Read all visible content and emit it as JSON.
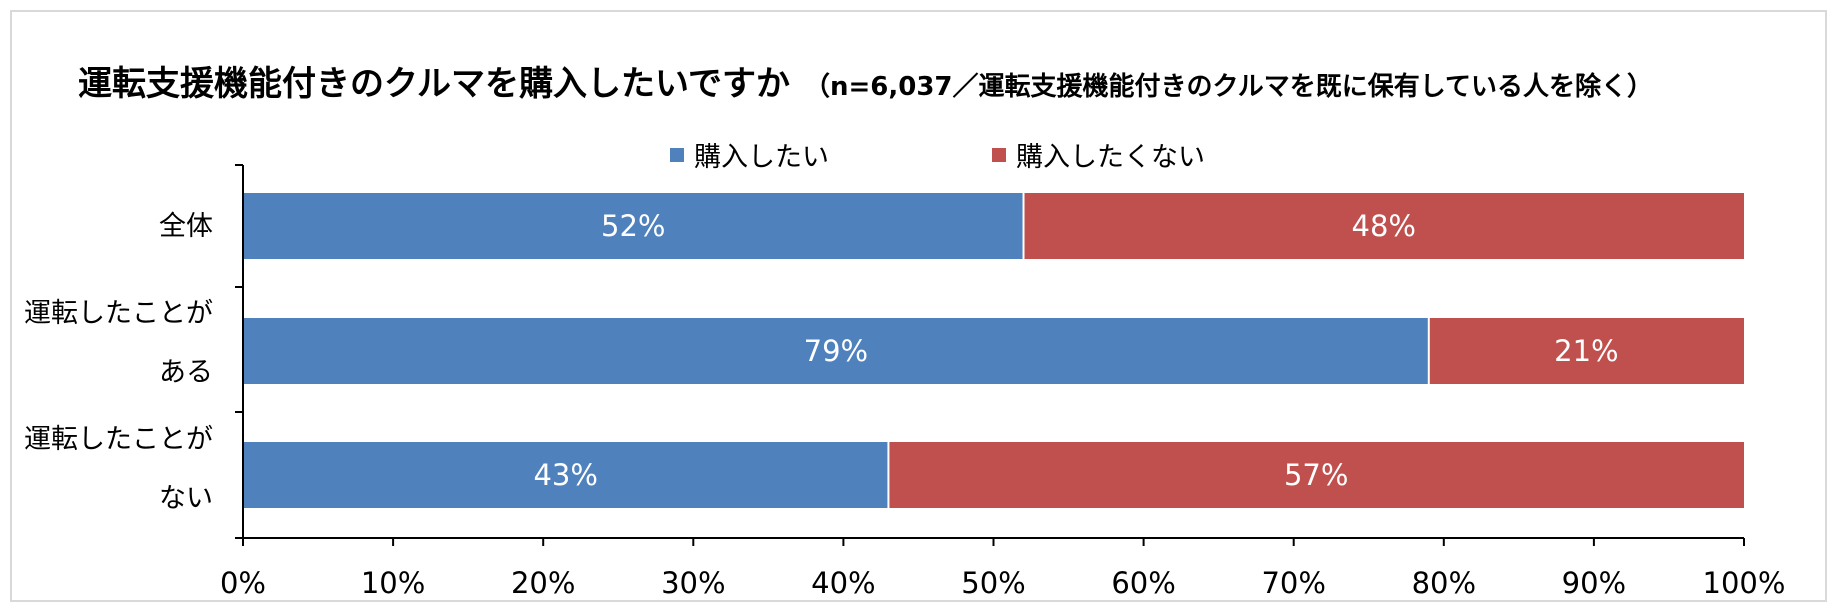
{
  "title": "運転支援機能付きのクルマを購入したいですか",
  "subtitle": "（n=6,037／運転支援機能付きのクルマを既に保有している人を除く）",
  "chart_data": {
    "type": "bar",
    "orientation": "horizontal",
    "stacked": true,
    "categories": [
      [
        "全体"
      ],
      [
        "運転したことが",
        "ある"
      ],
      [
        "運転したことが",
        "ない"
      ]
    ],
    "series": [
      {
        "name": "購入したい",
        "color": "#4f81bd",
        "values": [
          52,
          79,
          43
        ],
        "labels": [
          "52%",
          "79%",
          "43%"
        ]
      },
      {
        "name": "購入したくない",
        "color": "#c0504d",
        "values": [
          48,
          21,
          57
        ],
        "labels": [
          "48%",
          "21%",
          "57%"
        ]
      }
    ],
    "xlim": [
      0,
      100
    ],
    "xticks": [
      "0%",
      "10%",
      "20%",
      "30%",
      "40%",
      "50%",
      "60%",
      "70%",
      "80%",
      "90%",
      "100%"
    ],
    "grid": false,
    "legend": "top"
  }
}
